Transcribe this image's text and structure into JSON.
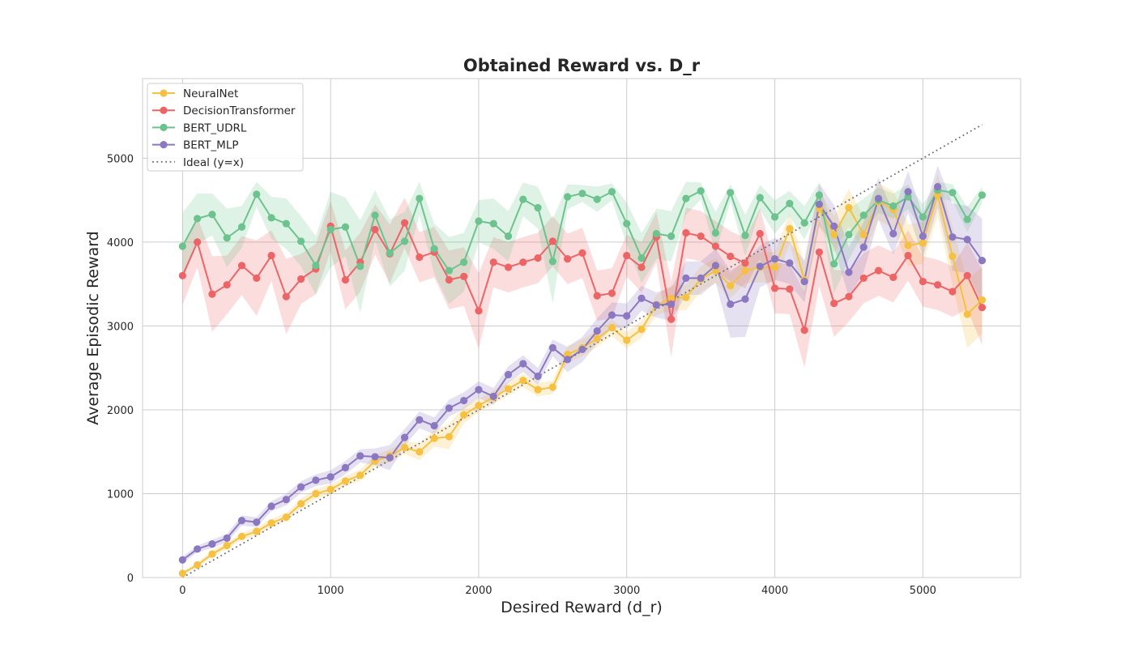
{
  "chart_data": {
    "type": "line",
    "title": "Obtained Reward vs. D_r",
    "xlabel": "Desired Reward (d_r)",
    "ylabel": "Average Episodic Reward",
    "xlim": [
      -270,
      5660
    ],
    "ylim": [
      0,
      5950
    ],
    "xticks": [
      0,
      1000,
      2000,
      3000,
      4000,
      5000
    ],
    "yticks": [
      0,
      1000,
      2000,
      3000,
      4000,
      5000
    ],
    "tick_labels_x": [
      "0",
      "1000",
      "2000",
      "3000",
      "4000",
      "5000"
    ],
    "tick_labels_y": [
      "0",
      "1000",
      "2000",
      "3000",
      "4000",
      "5000"
    ],
    "grid": true,
    "legend_position": "top-left",
    "x": [
      0,
      100,
      200,
      300,
      400,
      500,
      600,
      700,
      800,
      900,
      1000,
      1100,
      1200,
      1300,
      1400,
      1500,
      1600,
      1700,
      1800,
      1900,
      2000,
      2100,
      2200,
      2300,
      2400,
      2500,
      2600,
      2700,
      2800,
      2900,
      3000,
      3100,
      3200,
      3300,
      3400,
      3500,
      3600,
      3700,
      3800,
      3900,
      4000,
      4100,
      4200,
      4300,
      4400,
      4500,
      4600,
      4700,
      4800,
      4900,
      5000,
      5100,
      5200,
      5300,
      5400
    ],
    "series": [
      {
        "name": "NeuralNet",
        "color": "#f6c142",
        "values": [
          50,
          150,
          280,
          380,
          490,
          550,
          650,
          720,
          880,
          1000,
          1050,
          1150,
          1220,
          1390,
          1450,
          1550,
          1500,
          1660,
          1680,
          1940,
          2050,
          2150,
          2250,
          2350,
          2240,
          2270,
          2660,
          2740,
          2850,
          2980,
          2830,
          2960,
          3250,
          3330,
          3340,
          3560,
          3660,
          3480,
          3660,
          3700,
          3700,
          4160,
          3550,
          4400,
          4090,
          4410,
          4090,
          4480,
          4390,
          3960,
          3990,
          4560,
          3830,
          3140,
          3310
        ],
        "spread": [
          20,
          30,
          40,
          40,
          40,
          50,
          50,
          50,
          60,
          60,
          60,
          60,
          70,
          70,
          80,
          80,
          100,
          100,
          150,
          100,
          80,
          80,
          80,
          80,
          80,
          80,
          100,
          100,
          100,
          100,
          100,
          100,
          120,
          150,
          150,
          150,
          150,
          150,
          150,
          180,
          180,
          180,
          200,
          220,
          220,
          220,
          220,
          220,
          220,
          250,
          250,
          250,
          350,
          400,
          400
        ]
      },
      {
        "name": "DecisionTransformer",
        "color": "#ed6466",
        "values": [
          3600,
          4000,
          3380,
          3490,
          3720,
          3570,
          3840,
          3350,
          3560,
          3680,
          4190,
          3550,
          3760,
          4150,
          3860,
          4230,
          3820,
          3880,
          3550,
          3590,
          3180,
          3760,
          3700,
          3760,
          3810,
          4010,
          3800,
          3870,
          3360,
          3390,
          3840,
          3700,
          4060,
          3080,
          4110,
          4070,
          3950,
          3830,
          3750,
          4100,
          3450,
          3440,
          2950,
          3880,
          3270,
          3350,
          3570,
          3660,
          3580,
          3840,
          3530,
          3490,
          3410,
          3600,
          3220
        ],
        "spread": [
          350,
          300,
          450,
          350,
          350,
          450,
          300,
          450,
          300,
          300,
          300,
          350,
          350,
          300,
          350,
          300,
          300,
          300,
          350,
          350,
          450,
          300,
          300,
          300,
          300,
          300,
          300,
          300,
          300,
          300,
          250,
          300,
          300,
          450,
          300,
          300,
          300,
          300,
          300,
          300,
          300,
          300,
          450,
          400,
          400,
          300,
          300,
          300,
          300,
          300,
          300,
          300,
          300,
          400,
          450
        ]
      },
      {
        "name": "BERT_UDRL",
        "color": "#6cc38d",
        "values": [
          3950,
          4280,
          4330,
          4050,
          4180,
          4570,
          4290,
          4220,
          4010,
          3720,
          4150,
          4180,
          3710,
          4320,
          3870,
          4010,
          4520,
          3920,
          3660,
          3760,
          4250,
          4220,
          4070,
          4510,
          4410,
          3770,
          4540,
          4580,
          4510,
          4600,
          4220,
          3810,
          4100,
          4070,
          4520,
          4610,
          4110,
          4590,
          4080,
          4530,
          4300,
          4460,
          4230,
          4560,
          3740,
          4090,
          4320,
          4500,
          4430,
          4540,
          4300,
          4620,
          4590,
          4270,
          4560
        ],
        "spread": [
          400,
          300,
          250,
          350,
          250,
          150,
          250,
          300,
          300,
          350,
          450,
          350,
          550,
          300,
          400,
          350,
          200,
          300,
          400,
          350,
          250,
          300,
          300,
          200,
          250,
          500,
          150,
          100,
          150,
          100,
          250,
          300,
          300,
          300,
          200,
          100,
          250,
          100,
          250,
          150,
          200,
          150,
          200,
          150,
          350,
          300,
          200,
          150,
          150,
          150,
          150,
          100,
          100,
          150,
          100
        ]
      },
      {
        "name": "BERT_MLP",
        "color": "#8b78c1",
        "values": [
          210,
          340,
          400,
          470,
          680,
          660,
          850,
          930,
          1080,
          1160,
          1200,
          1310,
          1450,
          1440,
          1430,
          1670,
          1880,
          1810,
          2020,
          2110,
          2240,
          2160,
          2420,
          2550,
          2400,
          2740,
          2600,
          2720,
          2940,
          3130,
          3120,
          3330,
          3250,
          3260,
          3570,
          3570,
          3720,
          3260,
          3320,
          3710,
          3800,
          3750,
          3530,
          4450,
          4190,
          3640,
          3940,
          4520,
          4100,
          4600,
          4070,
          4660,
          4060,
          4030,
          3780
        ],
        "spread": [
          40,
          40,
          50,
          50,
          60,
          60,
          60,
          70,
          70,
          70,
          80,
          80,
          80,
          100,
          150,
          100,
          100,
          100,
          100,
          100,
          100,
          100,
          100,
          100,
          100,
          100,
          150,
          150,
          150,
          150,
          150,
          150,
          150,
          200,
          200,
          200,
          200,
          400,
          450,
          250,
          250,
          250,
          250,
          250,
          250,
          300,
          300,
          250,
          250,
          250,
          250,
          250,
          400,
          400,
          500
        ]
      },
      {
        "name": "Ideal (y=x)",
        "color": "#6e6e6e",
        "style": "dotted",
        "values": [
          0,
          100,
          200,
          300,
          400,
          500,
          600,
          700,
          800,
          900,
          1000,
          1100,
          1200,
          1300,
          1400,
          1500,
          1600,
          1700,
          1800,
          1900,
          2000,
          2100,
          2200,
          2300,
          2400,
          2500,
          2600,
          2700,
          2800,
          2900,
          3000,
          3100,
          3200,
          3300,
          3400,
          3500,
          3600,
          3700,
          3800,
          3900,
          4000,
          4100,
          4200,
          4300,
          4400,
          4500,
          4600,
          4700,
          4800,
          4900,
          5000,
          5100,
          5200,
          5300,
          5400
        ]
      }
    ]
  }
}
